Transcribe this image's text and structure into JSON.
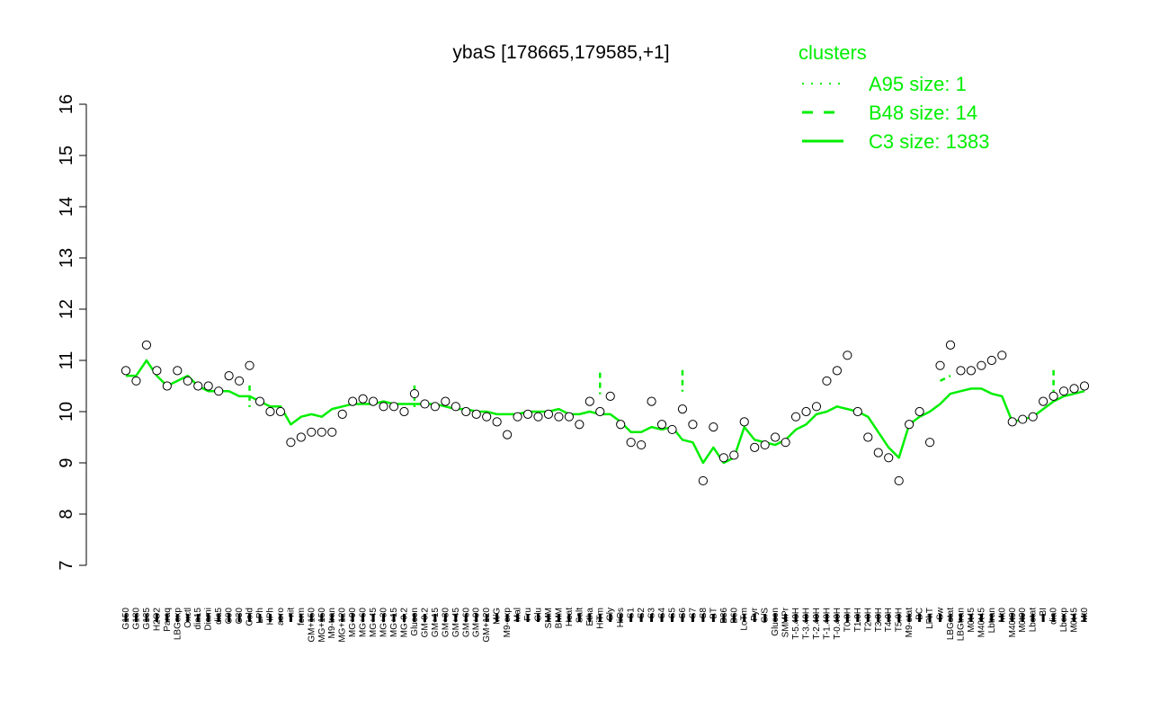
{
  "chart_data": {
    "type": "line",
    "title": "ybaS [178665,179585,+1]",
    "xlabel": "",
    "ylabel": "",
    "ylim": [
      7,
      16
    ],
    "yticks": [
      7,
      8,
      9,
      10,
      11,
      12,
      13,
      14,
      15,
      16
    ],
    "grid": false,
    "legend": {
      "title": "clusters",
      "placement": "top-right",
      "color": "#00ee00",
      "entries": [
        {
          "label": "A95 size: 1",
          "style": "dotted"
        },
        {
          "label": "B48 size: 14",
          "style": "dashed"
        },
        {
          "label": "C3 size: 1383",
          "style": "solid"
        }
      ]
    },
    "x_tick_labels": [
      "G150",
      "G180",
      "G135",
      "H2O2",
      "Paraq",
      "LBGexp",
      "Oxctl",
      "dia15",
      "Diami",
      "dia5",
      "C90",
      "C30",
      "Cold",
      "LPh",
      "HPh",
      "aero",
      "nit",
      "ferm",
      "GM+150",
      "MG+150",
      "M9-tran",
      "MG+120",
      "MG+90",
      "MG+60",
      "MG+45",
      "MG+30",
      "MG+15",
      "MG-0.2",
      "Glucon",
      "GM-0.2",
      "GM+15",
      "GM+30",
      "GM+45",
      "GM+60",
      "GM+90",
      "GM+120",
      "M/G",
      "M9-exp",
      "Mal",
      "Fru",
      "Glu",
      "SMM",
      "BMM",
      "Heat",
      "Salt",
      "Etha",
      "HiTm",
      "Gly",
      "HiOs",
      "S1",
      "S2",
      "S3",
      "S4",
      "S5",
      "S6",
      "S7",
      "S8",
      "BT",
      "B36",
      "B60",
      "LoTm",
      "Pyr",
      "G/S",
      "Glucon",
      "SMMPr",
      "T-5.40H",
      "T-3.40H",
      "T-2.40H",
      "T-1.40H",
      "T-0.40H",
      "T0.0H",
      "T1.0H",
      "T2.0H",
      "T3.0H",
      "T4.0H",
      "T5.0H",
      "M9-stat",
      "BC",
      "LPhT",
      "Sw",
      "LBGstat",
      "LBGtran",
      "M0t45",
      "M40t45",
      "Lbtran",
      "Mt0",
      "M40t90",
      "M0t90",
      "Lbstat",
      "BI",
      "dia0",
      "Lbexp",
      "M0t45",
      "Mt0"
    ],
    "series": [
      {
        "style": "solid",
        "color": "#00ee00",
        "values": [
          10.7,
          10.7,
          11.0,
          10.7,
          10.5,
          10.6,
          10.7,
          10.5,
          10.4,
          10.4,
          10.4,
          10.3,
          10.3,
          10.2,
          10.1,
          10.1,
          9.75,
          9.9,
          9.95,
          9.9,
          10.05,
          10.1,
          10.15,
          10.15,
          10.15,
          10.2,
          10.15,
          10.15,
          10.15,
          10.15,
          10.15,
          10.1,
          10.05,
          10.05,
          10.0,
          10.0,
          9.95,
          9.95,
          9.95,
          10.0,
          10.0,
          10.0,
          10.05,
          9.95,
          9.95,
          10.0,
          9.95,
          9.95,
          9.8,
          9.6,
          9.6,
          9.7,
          9.65,
          9.7,
          9.45,
          9.4,
          9.0,
          9.3,
          9.0,
          9.1,
          9.7,
          9.45,
          9.4,
          9.35,
          9.45,
          9.65,
          9.75,
          9.95,
          10.0,
          10.1,
          10.05,
          10.0,
          9.9,
          9.6,
          9.3,
          9.1,
          9.75,
          9.9,
          10.0,
          10.15,
          10.35,
          10.4,
          10.45,
          10.45,
          10.35,
          10.3,
          9.8,
          9.85,
          9.9,
          10.05,
          10.2,
          10.3,
          10.35,
          10.4
        ]
      },
      {
        "style": "dashed",
        "color": "#00ee00",
        "values": [
          null,
          null,
          null,
          null,
          null,
          null,
          null,
          null,
          null,
          null,
          null,
          null,
          10.3,
          null,
          null,
          null,
          null,
          null,
          null,
          null,
          null,
          null,
          null,
          null,
          null,
          null,
          null,
          null,
          10.3,
          null,
          null,
          null,
          null,
          null,
          null,
          null,
          null,
          null,
          null,
          null,
          null,
          null,
          null,
          null,
          null,
          null,
          10.55,
          null,
          null,
          null,
          null,
          null,
          null,
          null,
          10.6,
          null,
          null,
          null,
          null,
          null,
          null,
          null,
          null,
          null,
          null,
          null,
          null,
          null,
          null,
          null,
          null,
          null,
          null,
          null,
          null,
          null,
          null,
          null,
          null,
          10.6,
          10.7,
          null,
          null,
          null,
          null,
          null,
          null,
          null,
          null,
          null,
          10.6,
          null,
          null,
          null
        ]
      },
      {
        "style": "points",
        "color": "#000000",
        "values": [
          10.8,
          10.6,
          11.3,
          10.8,
          10.5,
          10.8,
          10.6,
          10.5,
          10.5,
          10.4,
          10.7,
          10.6,
          10.9,
          10.2,
          10.0,
          10.0,
          9.4,
          9.5,
          9.6,
          9.6,
          9.6,
          9.95,
          10.2,
          10.25,
          10.2,
          10.1,
          10.1,
          10.0,
          10.35,
          10.15,
          10.1,
          10.2,
          10.1,
          10.0,
          9.95,
          9.9,
          9.8,
          9.55,
          9.9,
          9.95,
          9.9,
          9.95,
          9.9,
          9.9,
          9.75,
          10.2,
          10.0,
          10.3,
          9.75,
          9.4,
          9.35,
          10.2,
          9.75,
          9.65,
          10.05,
          9.75,
          8.65,
          9.7,
          9.1,
          9.15,
          9.8,
          9.3,
          9.35,
          9.5,
          9.4,
          9.9,
          10.0,
          10.1,
          10.6,
          10.8,
          11.1,
          10.0,
          9.5,
          9.2,
          9.1,
          8.65,
          9.75,
          10.0,
          9.4,
          10.9,
          11.3,
          10.8,
          10.8,
          10.9,
          11.0,
          11.1,
          9.8,
          9.85,
          9.9,
          10.2,
          10.3,
          10.4,
          10.45,
          10.5
        ]
      }
    ]
  }
}
